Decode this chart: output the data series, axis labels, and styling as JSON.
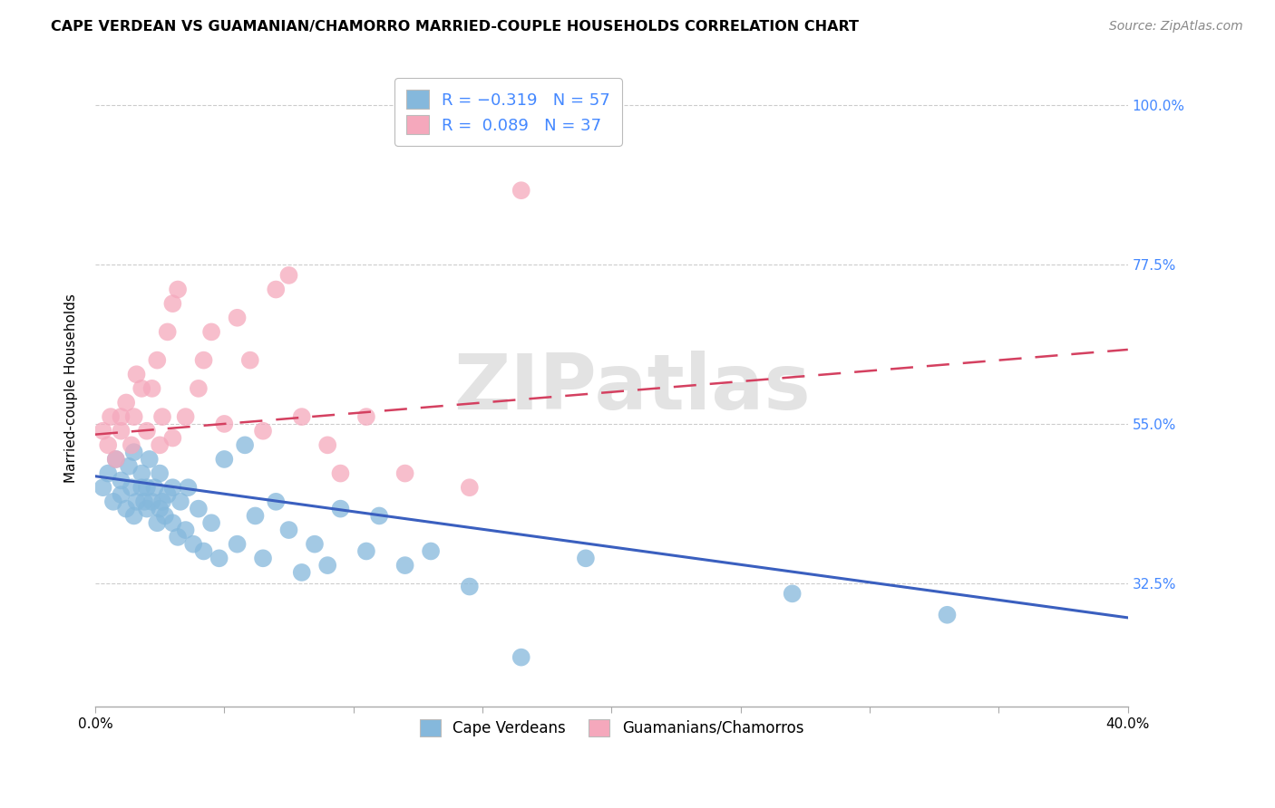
{
  "title": "CAPE VERDEAN VS GUAMANIAN/CHAMORRO MARRIED-COUPLE HOUSEHOLDS CORRELATION CHART",
  "source": "Source: ZipAtlas.com",
  "ylabel": "Married-couple Households",
  "xlim": [
    0.0,
    0.4
  ],
  "ylim": [
    0.15,
    1.05
  ],
  "right_ytick_values": [
    1.0,
    0.775,
    0.55,
    0.325
  ],
  "right_ytick_labels": [
    "100.0%",
    "77.5%",
    "55.0%",
    "32.5%"
  ],
  "xtick_values": [
    0.0,
    0.05,
    0.1,
    0.15,
    0.2,
    0.25,
    0.3,
    0.35,
    0.4
  ],
  "blue_R": -0.319,
  "blue_N": 57,
  "pink_R": 0.089,
  "pink_N": 37,
  "blue_color": "#85B8DC",
  "pink_color": "#F5A8BC",
  "blue_line_color": "#3A5FBF",
  "pink_line_color": "#D44060",
  "background_color": "#FFFFFF",
  "watermark": "ZIPatlas",
  "legend_label_blue": "Cape Verdeans",
  "legend_label_pink": "Guamanians/Chamorros",
  "blue_scatter_x": [
    0.003,
    0.005,
    0.007,
    0.008,
    0.01,
    0.01,
    0.012,
    0.013,
    0.014,
    0.015,
    0.015,
    0.016,
    0.018,
    0.018,
    0.019,
    0.02,
    0.02,
    0.021,
    0.022,
    0.023,
    0.024,
    0.025,
    0.025,
    0.026,
    0.027,
    0.028,
    0.03,
    0.03,
    0.032,
    0.033,
    0.035,
    0.036,
    0.038,
    0.04,
    0.042,
    0.045,
    0.048,
    0.05,
    0.055,
    0.058,
    0.062,
    0.065,
    0.07,
    0.075,
    0.08,
    0.085,
    0.09,
    0.095,
    0.105,
    0.11,
    0.12,
    0.13,
    0.145,
    0.165,
    0.19,
    0.27,
    0.33
  ],
  "blue_scatter_y": [
    0.46,
    0.48,
    0.44,
    0.5,
    0.45,
    0.47,
    0.43,
    0.49,
    0.46,
    0.42,
    0.51,
    0.44,
    0.46,
    0.48,
    0.44,
    0.43,
    0.46,
    0.5,
    0.44,
    0.46,
    0.41,
    0.43,
    0.48,
    0.44,
    0.42,
    0.45,
    0.41,
    0.46,
    0.39,
    0.44,
    0.4,
    0.46,
    0.38,
    0.43,
    0.37,
    0.41,
    0.36,
    0.5,
    0.38,
    0.52,
    0.42,
    0.36,
    0.44,
    0.4,
    0.34,
    0.38,
    0.35,
    0.43,
    0.37,
    0.42,
    0.35,
    0.37,
    0.32,
    0.22,
    0.36,
    0.31,
    0.28
  ],
  "pink_scatter_x": [
    0.003,
    0.005,
    0.006,
    0.008,
    0.01,
    0.01,
    0.012,
    0.014,
    0.015,
    0.016,
    0.018,
    0.02,
    0.022,
    0.024,
    0.025,
    0.026,
    0.028,
    0.03,
    0.03,
    0.032,
    0.035,
    0.04,
    0.042,
    0.045,
    0.05,
    0.055,
    0.06,
    0.065,
    0.07,
    0.075,
    0.08,
    0.09,
    0.095,
    0.105,
    0.12,
    0.145,
    0.165
  ],
  "pink_scatter_y": [
    0.54,
    0.52,
    0.56,
    0.5,
    0.54,
    0.56,
    0.58,
    0.52,
    0.56,
    0.62,
    0.6,
    0.54,
    0.6,
    0.64,
    0.52,
    0.56,
    0.68,
    0.53,
    0.72,
    0.74,
    0.56,
    0.6,
    0.64,
    0.68,
    0.55,
    0.7,
    0.64,
    0.54,
    0.74,
    0.76,
    0.56,
    0.52,
    0.48,
    0.56,
    0.48,
    0.46,
    0.88
  ],
  "blue_line_x0": 0.0,
  "blue_line_y0": 0.476,
  "blue_line_x1": 0.4,
  "blue_line_y1": 0.276,
  "pink_line_x0": 0.0,
  "pink_line_y0": 0.535,
  "pink_line_x1": 0.4,
  "pink_line_y1": 0.655
}
